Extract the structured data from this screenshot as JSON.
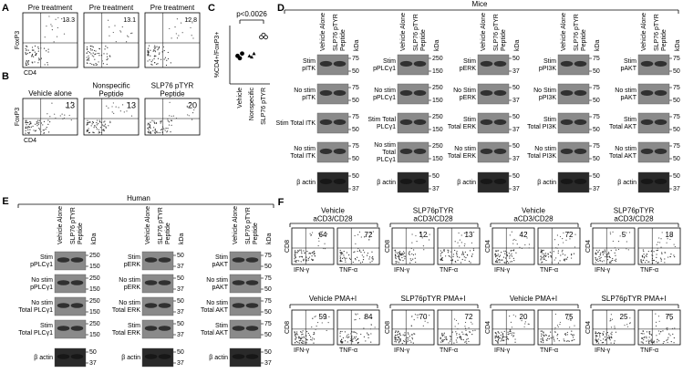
{
  "panel_a": {
    "label": "A",
    "y_label": "FoxP3",
    "x_label": "CD4",
    "plots": [
      {
        "title": [
          "Pre treatment"
        ],
        "value": 13.3
      },
      {
        "title": [
          "Pre treatment"
        ],
        "value": 13.1
      },
      {
        "title": [
          "Pre treatment"
        ],
        "value": 12.8
      }
    ]
  },
  "panel_b": {
    "label": "B",
    "y_label": "FoxP3",
    "x_label": "CD4",
    "plots": [
      {
        "title": [
          "Vehicle alone"
        ],
        "value": 13
      },
      {
        "title": [
          "Nonspecific",
          "Peptide"
        ],
        "value": 13
      },
      {
        "title": [
          "SLP76 pTYR",
          "Peptide"
        ],
        "value": 20
      }
    ]
  },
  "chart_data": {
    "type": "dot",
    "label": "C",
    "y_label": "%CD4+/FoxP3+",
    "categories": [
      "Vehicle",
      "Nonspecific",
      "SLP76 pTYR"
    ],
    "values": [
      [
        12,
        11,
        13
      ],
      [
        12,
        11.5,
        13
      ],
      [
        20,
        21,
        20
      ]
    ],
    "markers": [
      "circle",
      "triangle",
      "open-circle"
    ],
    "color": "#000000",
    "ylim": [
      0,
      25
    ],
    "annotation": "p<0.0026"
  },
  "panel_d": {
    "label": "D",
    "header": "Mice",
    "columns": [
      [
        "Vehicle Alone"
      ],
      [
        "SLP76 pTYR",
        "Peptide"
      ]
    ],
    "unit": "kDa",
    "blots": [
      {
        "rows": [
          {
            "label": [
              "Stim",
              "pITK"
            ],
            "markers": [
              75,
              50
            ]
          },
          {
            "label": [
              "No stim",
              "pITK"
            ],
            "markers": [
              75,
              50
            ]
          },
          {
            "label": [
              "Stim Total ITK"
            ],
            "markers": [
              75,
              50
            ]
          },
          {
            "label": [
              "No stim",
              "Total ITK"
            ],
            "markers": [
              75,
              50
            ]
          },
          {
            "label": [
              "β actin"
            ],
            "markers": [
              50,
              37
            ]
          }
        ]
      },
      {
        "rows": [
          {
            "label": [
              "Stim",
              "pPLCγ1"
            ],
            "markers": [
              250,
              150
            ]
          },
          {
            "label": [
              "No stim",
              "pPLCγ1"
            ],
            "markers": [
              250,
              150
            ]
          },
          {
            "label": [
              "Stim Total",
              "PLCγ1"
            ],
            "markers": [
              250,
              150
            ]
          },
          {
            "label": [
              "No stim",
              "Total",
              "PLCγ1"
            ],
            "markers": [
              250,
              150
            ]
          },
          {
            "label": [
              "β actin"
            ],
            "markers": [
              50,
              37
            ]
          }
        ]
      },
      {
        "rows": [
          {
            "label": [
              "Stim",
              "pERK"
            ],
            "markers": [
              50,
              37
            ]
          },
          {
            "label": [
              "No Stim",
              "pERK"
            ],
            "markers": [
              50,
              37
            ]
          },
          {
            "label": [
              "Stim",
              "Total ERK"
            ],
            "markers": [
              50,
              37
            ]
          },
          {
            "label": [
              "No stim",
              "Total ERK"
            ],
            "markers": [
              50,
              37
            ]
          },
          {
            "label": [
              "β actin"
            ],
            "markers": [
              50,
              37
            ]
          }
        ]
      },
      {
        "rows": [
          {
            "label": [
              "Stim",
              "pPI3K"
            ],
            "markers": [
              75,
              50
            ]
          },
          {
            "label": [
              "No Stim",
              "pPI3K"
            ],
            "markers": [
              75,
              50
            ]
          },
          {
            "label": [
              "Stim",
              "Total PI3K"
            ],
            "markers": [
              75,
              50
            ]
          },
          {
            "label": [
              "No stim",
              "Total PI3K"
            ],
            "markers": [
              75,
              50
            ]
          },
          {
            "label": [
              "β actin"
            ],
            "markers": [
              50,
              37
            ]
          }
        ]
      },
      {
        "rows": [
          {
            "label": [
              "Stim",
              "pAKT"
            ],
            "markers": [
              75,
              50
            ]
          },
          {
            "label": [
              "No stim",
              "pAKT"
            ],
            "markers": [
              75,
              50
            ]
          },
          {
            "label": [
              "Stim",
              "Total AKT"
            ],
            "markers": [
              75,
              50
            ]
          },
          {
            "label": [
              "No stim",
              "Total AKT"
            ],
            "markers": [
              75,
              50
            ]
          },
          {
            "label": [
              "β actin"
            ],
            "markers": [
              50,
              37
            ]
          }
        ]
      }
    ]
  },
  "panel_e": {
    "label": "E",
    "header": "Human",
    "columns": [
      [
        "Vehicle Alone"
      ],
      [
        "SLP76 pTYR",
        "Peptide"
      ]
    ],
    "unit": "kDa",
    "blots": [
      {
        "rows": [
          {
            "label": [
              "Stim",
              "pPLCγ1"
            ],
            "markers": [
              250,
              150
            ]
          },
          {
            "label": [
              "No stim",
              "pPLCγ1"
            ],
            "markers": [
              250,
              150
            ]
          },
          {
            "label": [
              "No stim",
              "Total PLCγ1"
            ],
            "markers": [
              250,
              150
            ]
          },
          {
            "label": [
              "Stim",
              "Total PLCγ1"
            ],
            "markers": [
              250,
              150
            ]
          },
          {
            "label": [
              "β actin"
            ],
            "markers": [
              50,
              37
            ]
          }
        ]
      },
      {
        "rows": [
          {
            "label": [
              "Stim",
              "pERK"
            ],
            "markers": [
              50,
              37
            ]
          },
          {
            "label": [
              "No stim",
              "pERK"
            ],
            "markers": [
              50,
              37
            ]
          },
          {
            "label": [
              "No stim",
              "Total ERK"
            ],
            "markers": [
              50,
              37
            ]
          },
          {
            "label": [
              "Stim",
              "Total ERK"
            ],
            "markers": [
              50,
              37
            ]
          },
          {
            "label": [
              "β actin"
            ],
            "markers": [
              50,
              37
            ]
          }
        ]
      },
      {
        "rows": [
          {
            "label": [
              "Stim",
              "pAKT"
            ],
            "markers": [
              75,
              50
            ]
          },
          {
            "label": [
              "No stim",
              "pAKT"
            ],
            "markers": [
              75,
              50
            ]
          },
          {
            "label": [
              "No stim",
              "Total AKT"
            ],
            "markers": [
              75,
              50
            ]
          },
          {
            "label": [
              "Stim",
              "Total AKT"
            ],
            "markers": [
              75,
              50
            ]
          },
          {
            "label": [
              "β actin"
            ],
            "markers": [
              50,
              37
            ]
          }
        ]
      }
    ]
  },
  "panel_f": {
    "label": "F",
    "x_labels": [
      "IFN-γ",
      "TNF-α"
    ],
    "groups": [
      {
        "title": [
          "Vehicle",
          "aCD3/CD28"
        ],
        "y_label": "CD8",
        "values": [
          64,
          72
        ]
      },
      {
        "title": [
          "SLP76pTYR",
          "aCD3/CD28"
        ],
        "y_label": "CD8",
        "values": [
          12,
          13
        ]
      },
      {
        "title": [
          "Vehicle",
          "aCD3/CD28"
        ],
        "y_label": "CD4",
        "values": [
          42,
          72
        ]
      },
      {
        "title": [
          "SLP76pTYR",
          "aCD3/CD28"
        ],
        "y_label": "CD4",
        "values": [
          5,
          18
        ]
      },
      {
        "title": [
          "Vehicle PMA+I"
        ],
        "y_label": "CD8",
        "values": [
          59,
          84
        ]
      },
      {
        "title": [
          "SLP76pTYR PMA+I"
        ],
        "y_label": "CD8",
        "values": [
          70,
          72
        ]
      },
      {
        "title": [
          "Vehicle PMA+I"
        ],
        "y_label": "CD4",
        "values": [
          20,
          75
        ]
      },
      {
        "title": [
          "SLP76pTYR PMA+I"
        ],
        "y_label": "CD4",
        "values": [
          25,
          75
        ]
      }
    ]
  }
}
